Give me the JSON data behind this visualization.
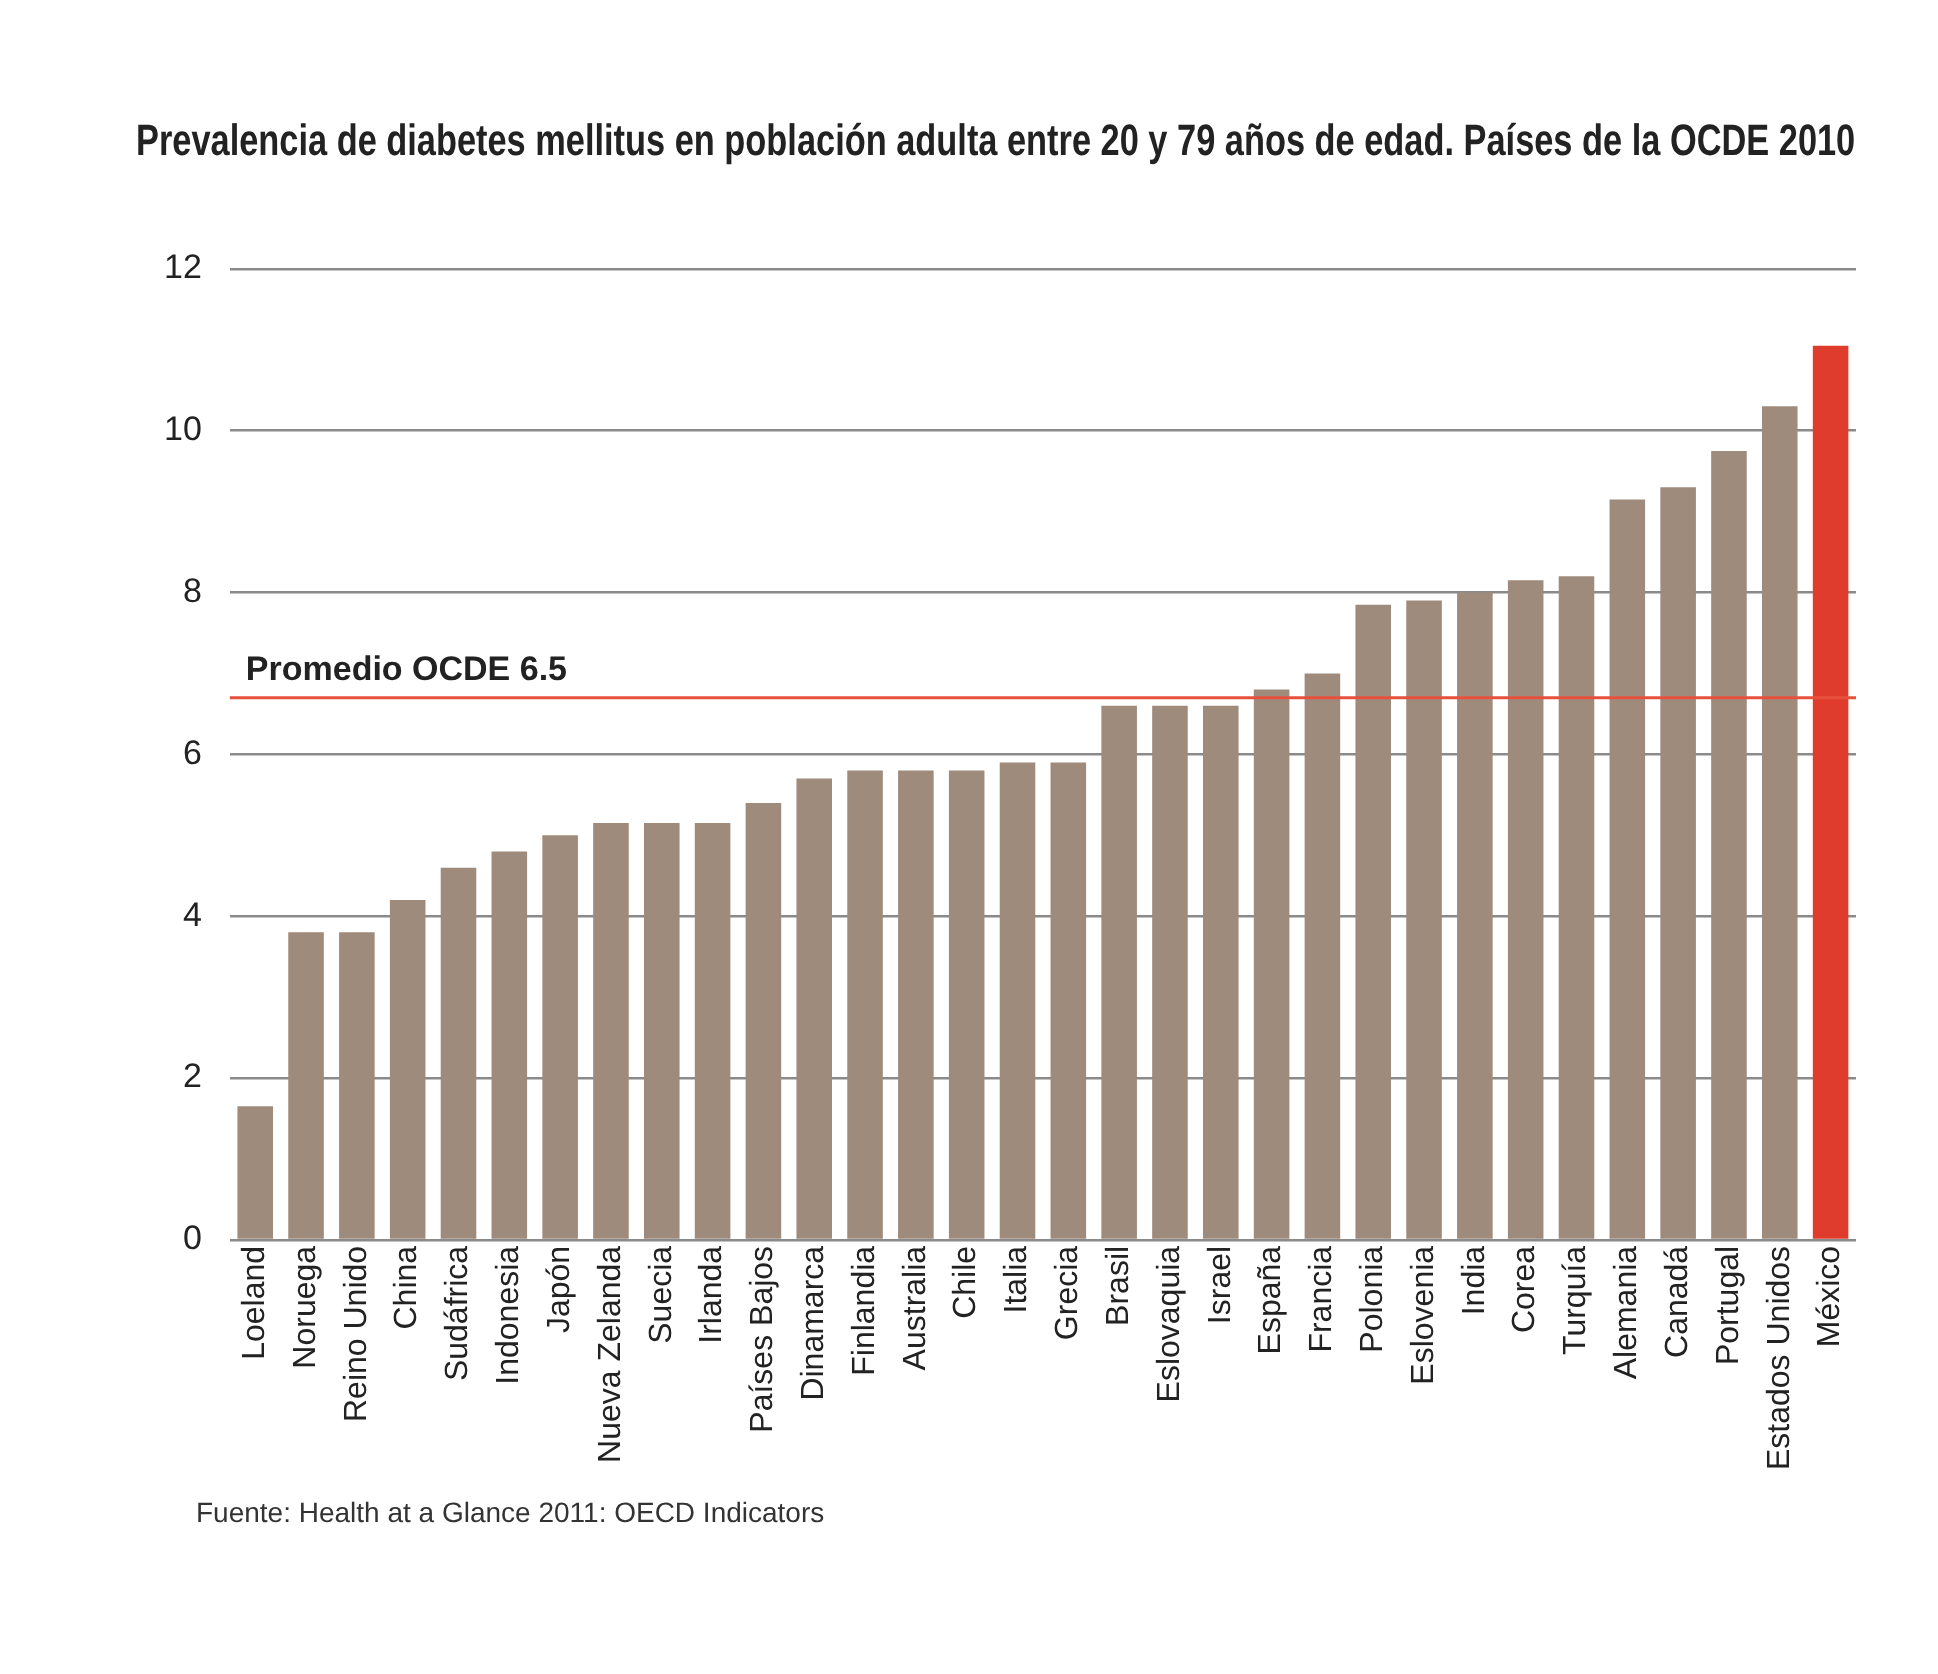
{
  "chart_data": {
    "type": "bar",
    "title": "Prevalencia de diabetes mellitus en población adulta entre 20 y 79 años de edad. Países de la OCDE 2010",
    "categories": [
      "Loeland",
      "Noruega",
      "Reino Unido",
      "China",
      "Sudáfrica",
      "Indonesia",
      "Japón",
      "Nueva Zelanda",
      "Suecia",
      "Irlanda",
      "Países Bajos",
      "Dinamarca",
      "Finlandia",
      "Australia",
      "Chile",
      "Italia",
      "Grecia",
      "Brasil",
      "Eslovaquia",
      "Israel",
      "España",
      "Francia",
      "Polonia",
      "Eslovenia",
      "India",
      "Corea",
      "Turquía",
      "Alemania",
      "Canadá",
      "Portugal",
      "Estados Unidos",
      "México"
    ],
    "values": [
      1.65,
      3.8,
      3.8,
      4.2,
      4.6,
      4.8,
      5.0,
      5.15,
      5.15,
      5.15,
      5.4,
      5.7,
      5.8,
      5.8,
      5.8,
      5.9,
      5.9,
      6.6,
      6.6,
      6.6,
      6.8,
      7.0,
      7.85,
      7.9,
      8.0,
      8.15,
      8.2,
      9.15,
      9.3,
      9.75,
      10.3,
      11.05
    ],
    "colors": [
      "#9e8b7b",
      "#9e8b7b",
      "#9e8b7b",
      "#9e8b7b",
      "#9e8b7b",
      "#9e8b7b",
      "#9e8b7b",
      "#9e8b7b",
      "#9e8b7b",
      "#9e8b7b",
      "#9e8b7b",
      "#9e8b7b",
      "#9e8b7b",
      "#9e8b7b",
      "#9e8b7b",
      "#9e8b7b",
      "#9e8b7b",
      "#9e8b7b",
      "#9e8b7b",
      "#9e8b7b",
      "#9e8b7b",
      "#9e8b7b",
      "#9e8b7b",
      "#9e8b7b",
      "#9e8b7b",
      "#9e8b7b",
      "#9e8b7b",
      "#9e8b7b",
      "#9e8b7b",
      "#9e8b7b",
      "#9e8b7b",
      "#e03c2d"
    ],
    "ylim": [
      0,
      12
    ],
    "yticks": [
      0,
      2,
      4,
      6,
      8,
      10,
      12
    ],
    "grid": "y",
    "ref_lines": [
      {
        "axis": "y",
        "value": 6.7,
        "label": "Promedio OCDE 6.5",
        "color": "#e8503e"
      }
    ],
    "annotations": [
      "Fuente: Health at a Glance 2011: OECD Indicators"
    ]
  }
}
